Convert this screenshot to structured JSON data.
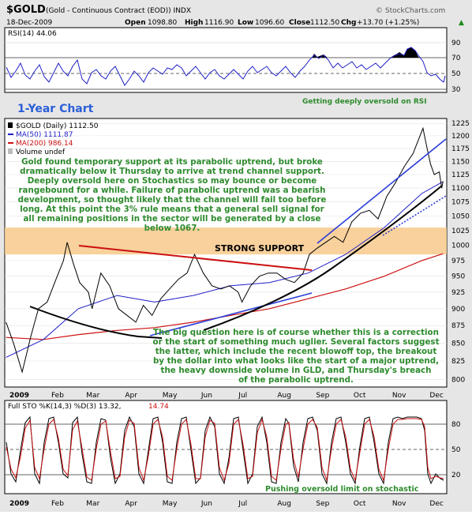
{
  "header": {
    "symbol": "$GOLD",
    "description": "(Gold - Continuous Contract (EOD)) INDX",
    "source": "© StockCharts.com",
    "date": "18-Dec-2009",
    "open_label": "Open",
    "open": "1098.80",
    "high_label": "High",
    "high": "1116.90",
    "low_label": "Low",
    "low": "1096.60",
    "close_label": "Close",
    "close": "1112.50",
    "chg_label": "Chg",
    "chg": "+13.70 (+1.25%)",
    "chg_arrow": "▲"
  },
  "rsi_panel": {
    "legend": "RSI(14) 44.06",
    "levels": [
      90,
      70,
      50,
      30
    ],
    "annotation": "Getting deeply oversold on RSI",
    "chart_title": "1-Year Chart"
  },
  "price_panel": {
    "legend": {
      "main": "$GOLD (Daily) 1112.50",
      "ma50": "MA(50) 1111.87",
      "ma200": "MA(200) 986.14",
      "volume": "Volume undef"
    },
    "support_label": "STRONG SUPPORT",
    "commentary_top": [
      "Gold found temporary support at its parabolic uptrend, but broke",
      "dramatically below it Thursday to arrive at trend channel support.",
      "Deeply oversold here on Stochastics so may bounce or become",
      "rangebound for a while. Failure of parabolic uptrend was a bearish",
      "development, so thought likely that the channel will fail too before",
      "long. At this point the 3% rule means that a general sell signal for",
      "all remaining positions in the sector will be generated by a close",
      "below 1067."
    ],
    "commentary_bottom": [
      "The big question here is of course whether this is a correction",
      "or the start of something much uglier. Several factors suggest",
      "the latter, which include the recent blowoff top, the breakout",
      "by the dollar into what looks like the start of a major uptrend,",
      "the heavy downside volume in GLD, and Thursday's breach",
      "of the parabolic uptrend."
    ],
    "y_ticks": [
      "1225",
      "1200",
      "1175",
      "1150",
      "1125",
      "1100",
      "1075",
      "1050",
      "1025",
      "1000",
      "975",
      "950",
      "925",
      "900",
      "875",
      "850",
      "825",
      "800"
    ]
  },
  "months": [
    "2009",
    "Feb",
    "Mar",
    "Apr",
    "May",
    "Jun",
    "Jul",
    "Aug",
    "Sep",
    "Oct",
    "Nov",
    "Dec"
  ],
  "sto_panel": {
    "legend_prefix": "Full STO %K(14,3) %D(3) 13.32,",
    "legend_value": "14.74",
    "levels": [
      80,
      50,
      20
    ],
    "annotation": "Pushing oversold limit on stochastic"
  },
  "colors": {
    "price": "#000000",
    "ma50": "#1f1fc8",
    "ma200": "#cc1111",
    "support_band": "#f7c98b",
    "annotation_text": "#2e8b2e",
    "title_blue": "#2b5fd9",
    "panel_bg": "#ffffff",
    "frame_bg": "#e6e6e6"
  },
  "chart_data": {
    "type": "line",
    "title": "$GOLD (Gold - Continuous Contract (EOD))",
    "x_categories": [
      "2009",
      "Feb",
      "Mar",
      "Apr",
      "May",
      "Jun",
      "Jul",
      "Aug",
      "Sep",
      "Oct",
      "Nov",
      "Dec"
    ],
    "ylim": [
      790,
      1235
    ],
    "y_scale": "log",
    "grid": true,
    "legend_position": "top-left",
    "series": [
      {
        "name": "$GOLD (Daily)",
        "points": [
          [
            "2009-01-02",
            880
          ],
          [
            "2009-01-08",
            850
          ],
          [
            "2009-01-15",
            810
          ],
          [
            "2009-01-22",
            860
          ],
          [
            "2009-01-28",
            900
          ],
          [
            "2009-02-04",
            910
          ],
          [
            "2009-02-11",
            945
          ],
          [
            "2009-02-17",
            975
          ],
          [
            "2009-02-20",
            1005
          ],
          [
            "2009-02-25",
            970
          ],
          [
            "2009-03-02",
            940
          ],
          [
            "2009-03-09",
            925
          ],
          [
            "2009-03-12",
            900
          ],
          [
            "2009-03-19",
            955
          ],
          [
            "2009-03-26",
            935
          ],
          [
            "2009-04-02",
            900
          ],
          [
            "2009-04-09",
            890
          ],
          [
            "2009-04-16",
            880
          ],
          [
            "2009-04-22",
            905
          ],
          [
            "2009-04-29",
            890
          ],
          [
            "2009-05-06",
            915
          ],
          [
            "2009-05-13",
            930
          ],
          [
            "2009-05-20",
            945
          ],
          [
            "2009-05-27",
            955
          ],
          [
            "2009-06-02",
            985
          ],
          [
            "2009-06-09",
            955
          ],
          [
            "2009-06-16",
            935
          ],
          [
            "2009-06-23",
            930
          ],
          [
            "2009-06-30",
            935
          ],
          [
            "2009-07-07",
            925
          ],
          [
            "2009-07-10",
            910
          ],
          [
            "2009-07-17",
            935
          ],
          [
            "2009-07-24",
            950
          ],
          [
            "2009-07-31",
            955
          ],
          [
            "2009-08-07",
            955
          ],
          [
            "2009-08-14",
            945
          ],
          [
            "2009-08-21",
            940
          ],
          [
            "2009-08-28",
            955
          ],
          [
            "2009-09-02",
            985
          ],
          [
            "2009-09-08",
            995
          ],
          [
            "2009-09-15",
            1005
          ],
          [
            "2009-09-22",
            1015
          ],
          [
            "2009-09-29",
            1005
          ],
          [
            "2009-10-06",
            1040
          ],
          [
            "2009-10-13",
            1055
          ],
          [
            "2009-10-20",
            1060
          ],
          [
            "2009-10-27",
            1045
          ],
          [
            "2009-11-03",
            1085
          ],
          [
            "2009-11-10",
            1110
          ],
          [
            "2009-11-17",
            1140
          ],
          [
            "2009-11-24",
            1165
          ],
          [
            "2009-12-02",
            1215
          ],
          [
            "2009-12-04",
            1190
          ],
          [
            "2009-12-08",
            1145
          ],
          [
            "2009-12-11",
            1125
          ],
          [
            "2009-12-15",
            1130
          ],
          [
            "2009-12-17",
            1100
          ],
          [
            "2009-12-18",
            1112.5
          ]
        ]
      },
      {
        "name": "MA(50)",
        "points": [
          [
            "2009-01-02",
            830
          ],
          [
            "2009-02-01",
            855
          ],
          [
            "2009-03-01",
            900
          ],
          [
            "2009-04-01",
            920
          ],
          [
            "2009-05-01",
            910
          ],
          [
            "2009-06-01",
            920
          ],
          [
            "2009-07-01",
            935
          ],
          [
            "2009-08-01",
            940
          ],
          [
            "2009-09-01",
            955
          ],
          [
            "2009-10-01",
            985
          ],
          [
            "2009-11-01",
            1030
          ],
          [
            "2009-12-01",
            1090
          ],
          [
            "2009-12-18",
            1111.87
          ]
        ]
      },
      {
        "name": "MA(200)",
        "points": [
          [
            "2009-01-02",
            858
          ],
          [
            "2009-02-01",
            855
          ],
          [
            "2009-03-01",
            862
          ],
          [
            "2009-04-01",
            868
          ],
          [
            "2009-05-01",
            872
          ],
          [
            "2009-06-01",
            880
          ],
          [
            "2009-07-01",
            890
          ],
          [
            "2009-08-01",
            900
          ],
          [
            "2009-09-01",
            915
          ],
          [
            "2009-10-01",
            930
          ],
          [
            "2009-11-01",
            950
          ],
          [
            "2009-12-01",
            975
          ],
          [
            "2009-12-18",
            986.14
          ]
        ]
      }
    ],
    "support_band": [
      985,
      1030
    ]
  }
}
